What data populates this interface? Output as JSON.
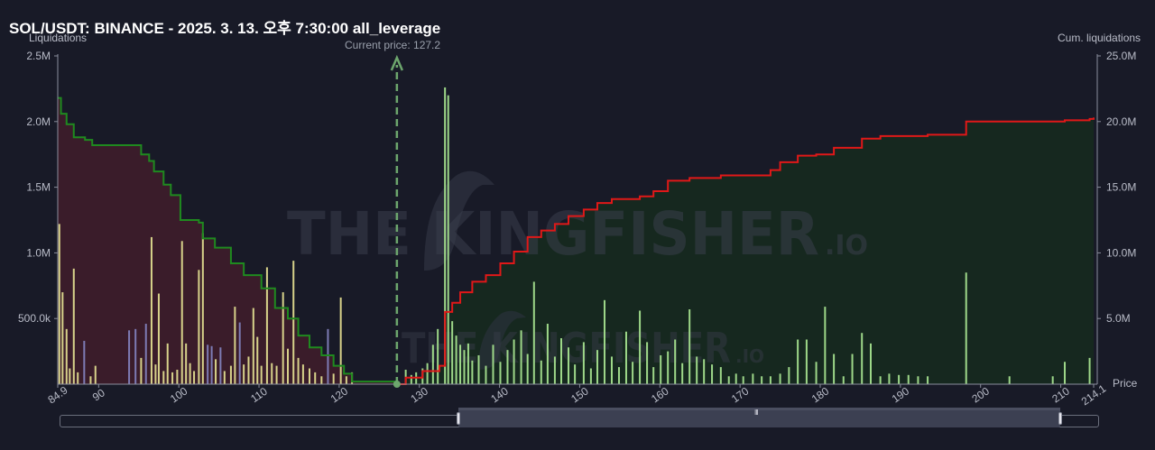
{
  "header": {
    "title": "SOL/USDT: BINANCE - 2025. 3. 13. 오후 7:30:00 all_leverage",
    "current_price_label": "Current price: 127.2"
  },
  "watermark": {
    "main": "THE KINGFISHER",
    "suffix": ".IO"
  },
  "colors": {
    "background": "#181a27",
    "long_fill": "#3a1c2a",
    "short_fill": "#16281f",
    "long_line": "#1f8a1f",
    "short_line": "#e01818",
    "bar_yellow": "#d7d28a",
    "bar_green": "#9ed889",
    "bar_purple": "#7d7bb4",
    "current_price": "#6da66d"
  },
  "scrollbar": {
    "grip_label": "III"
  },
  "chart_data": {
    "type": "bar",
    "title": "SOL/USDT: BINANCE - 2025. 3. 13. 오후 7:30:00 all_leverage",
    "xlabel": "Price",
    "ylabel_left": "Liquidations",
    "ylabel_right": "Cum. liquidations",
    "xlim": [
      84.9,
      214.1
    ],
    "ylim_left": [
      0,
      2500000
    ],
    "ylim_right": [
      0,
      25000000
    ],
    "x_ticks": [
      "84.9",
      "90",
      "100",
      "110",
      "120",
      "130",
      "140",
      "150",
      "160",
      "170",
      "180",
      "190",
      "200",
      "210",
      "214.1"
    ],
    "y_ticks_left": [
      "500.0k",
      "1.0M",
      "1.5M",
      "2.0M",
      "2.5M"
    ],
    "y_ticks_right": [
      "5.0M",
      "10.0M",
      "15.0M",
      "20.0M",
      "25.0M"
    ],
    "current_price": 127.2,
    "grid": false,
    "bars": [
      {
        "x": 85.1,
        "v": 1220000,
        "c": "y"
      },
      {
        "x": 85.5,
        "v": 700000,
        "c": "y"
      },
      {
        "x": 86.0,
        "v": 420000,
        "c": "y"
      },
      {
        "x": 86.4,
        "v": 120000,
        "c": "y"
      },
      {
        "x": 86.9,
        "v": 880000,
        "c": "y"
      },
      {
        "x": 87.4,
        "v": 90000,
        "c": "y"
      },
      {
        "x": 88.2,
        "v": 330000,
        "c": "p"
      },
      {
        "x": 89.0,
        "v": 60000,
        "c": "y"
      },
      {
        "x": 89.6,
        "v": 140000,
        "c": "y"
      },
      {
        "x": 93.8,
        "v": 410000,
        "c": "p"
      },
      {
        "x": 94.6,
        "v": 420000,
        "c": "p"
      },
      {
        "x": 95.3,
        "v": 200000,
        "c": "y"
      },
      {
        "x": 95.9,
        "v": 460000,
        "c": "p"
      },
      {
        "x": 96.6,
        "v": 1120000,
        "c": "y"
      },
      {
        "x": 97.1,
        "v": 150000,
        "c": "y"
      },
      {
        "x": 97.5,
        "v": 690000,
        "c": "y"
      },
      {
        "x": 98.1,
        "v": 100000,
        "c": "y"
      },
      {
        "x": 98.6,
        "v": 310000,
        "c": "y"
      },
      {
        "x": 99.2,
        "v": 90000,
        "c": "y"
      },
      {
        "x": 99.8,
        "v": 110000,
        "c": "y"
      },
      {
        "x": 100.4,
        "v": 1090000,
        "c": "y"
      },
      {
        "x": 100.9,
        "v": 310000,
        "c": "y"
      },
      {
        "x": 101.4,
        "v": 160000,
        "c": "y"
      },
      {
        "x": 101.9,
        "v": 100000,
        "c": "y"
      },
      {
        "x": 102.5,
        "v": 870000,
        "c": "y"
      },
      {
        "x": 103.0,
        "v": 1150000,
        "c": "y"
      },
      {
        "x": 103.6,
        "v": 300000,
        "c": "p"
      },
      {
        "x": 104.1,
        "v": 290000,
        "c": "p"
      },
      {
        "x": 104.6,
        "v": 190000,
        "c": "y"
      },
      {
        "x": 105.2,
        "v": 280000,
        "c": "p"
      },
      {
        "x": 105.7,
        "v": 100000,
        "c": "y"
      },
      {
        "x": 106.5,
        "v": 140000,
        "c": "y"
      },
      {
        "x": 107.0,
        "v": 590000,
        "c": "y"
      },
      {
        "x": 107.6,
        "v": 470000,
        "c": "p"
      },
      {
        "x": 108.1,
        "v": 150000,
        "c": "y"
      },
      {
        "x": 108.7,
        "v": 210000,
        "c": "y"
      },
      {
        "x": 109.3,
        "v": 580000,
        "c": "y"
      },
      {
        "x": 109.8,
        "v": 360000,
        "c": "y"
      },
      {
        "x": 110.3,
        "v": 140000,
        "c": "y"
      },
      {
        "x": 111.0,
        "v": 890000,
        "c": "y"
      },
      {
        "x": 111.6,
        "v": 160000,
        "c": "y"
      },
      {
        "x": 112.2,
        "v": 140000,
        "c": "y"
      },
      {
        "x": 113.0,
        "v": 700000,
        "c": "y"
      },
      {
        "x": 113.6,
        "v": 270000,
        "c": "y"
      },
      {
        "x": 114.3,
        "v": 940000,
        "c": "y"
      },
      {
        "x": 114.9,
        "v": 200000,
        "c": "y"
      },
      {
        "x": 115.5,
        "v": 150000,
        "c": "y"
      },
      {
        "x": 116.3,
        "v": 120000,
        "c": "y"
      },
      {
        "x": 117.0,
        "v": 90000,
        "c": "y"
      },
      {
        "x": 117.8,
        "v": 60000,
        "c": "y"
      },
      {
        "x": 118.6,
        "v": 420000,
        "c": "p"
      },
      {
        "x": 119.3,
        "v": 80000,
        "c": "y"
      },
      {
        "x": 120.2,
        "v": 660000,
        "c": "y"
      },
      {
        "x": 120.9,
        "v": 60000,
        "c": "y"
      },
      {
        "x": 121.6,
        "v": 90000,
        "c": "y"
      },
      {
        "x": 128.3,
        "v": 110000,
        "c": "g"
      },
      {
        "x": 129.0,
        "v": 70000,
        "c": "g"
      },
      {
        "x": 129.6,
        "v": 90000,
        "c": "g"
      },
      {
        "x": 130.4,
        "v": 120000,
        "c": "g"
      },
      {
        "x": 131.0,
        "v": 160000,
        "c": "g"
      },
      {
        "x": 131.7,
        "v": 300000,
        "c": "g"
      },
      {
        "x": 132.3,
        "v": 420000,
        "c": "g"
      },
      {
        "x": 133.2,
        "v": 2260000,
        "c": "g"
      },
      {
        "x": 133.6,
        "v": 2200000,
        "c": "g"
      },
      {
        "x": 134.1,
        "v": 480000,
        "c": "g"
      },
      {
        "x": 134.6,
        "v": 370000,
        "c": "g"
      },
      {
        "x": 135.1,
        "v": 300000,
        "c": "g"
      },
      {
        "x": 135.6,
        "v": 260000,
        "c": "g"
      },
      {
        "x": 136.1,
        "v": 310000,
        "c": "g"
      },
      {
        "x": 136.6,
        "v": 180000,
        "c": "g"
      },
      {
        "x": 137.4,
        "v": 220000,
        "c": "g"
      },
      {
        "x": 138.3,
        "v": 140000,
        "c": "g"
      },
      {
        "x": 139.2,
        "v": 300000,
        "c": "g"
      },
      {
        "x": 140.1,
        "v": 170000,
        "c": "g"
      },
      {
        "x": 141.0,
        "v": 260000,
        "c": "g"
      },
      {
        "x": 141.8,
        "v": 340000,
        "c": "g"
      },
      {
        "x": 142.7,
        "v": 410000,
        "c": "g"
      },
      {
        "x": 143.5,
        "v": 230000,
        "c": "g"
      },
      {
        "x": 144.3,
        "v": 780000,
        "c": "g"
      },
      {
        "x": 145.2,
        "v": 180000,
        "c": "g"
      },
      {
        "x": 146.0,
        "v": 460000,
        "c": "g"
      },
      {
        "x": 146.9,
        "v": 210000,
        "c": "g"
      },
      {
        "x": 147.7,
        "v": 350000,
        "c": "g"
      },
      {
        "x": 148.6,
        "v": 280000,
        "c": "g"
      },
      {
        "x": 149.4,
        "v": 150000,
        "c": "g"
      },
      {
        "x": 150.5,
        "v": 320000,
        "c": "g"
      },
      {
        "x": 151.4,
        "v": 120000,
        "c": "g"
      },
      {
        "x": 152.2,
        "v": 260000,
        "c": "g"
      },
      {
        "x": 153.1,
        "v": 640000,
        "c": "g"
      },
      {
        "x": 154.0,
        "v": 210000,
        "c": "g"
      },
      {
        "x": 154.9,
        "v": 130000,
        "c": "g"
      },
      {
        "x": 155.8,
        "v": 400000,
        "c": "g"
      },
      {
        "x": 156.6,
        "v": 170000,
        "c": "g"
      },
      {
        "x": 157.5,
        "v": 560000,
        "c": "g"
      },
      {
        "x": 158.4,
        "v": 320000,
        "c": "g"
      },
      {
        "x": 159.2,
        "v": 130000,
        "c": "g"
      },
      {
        "x": 160.1,
        "v": 220000,
        "c": "g"
      },
      {
        "x": 161.0,
        "v": 250000,
        "c": "g"
      },
      {
        "x": 161.9,
        "v": 340000,
        "c": "g"
      },
      {
        "x": 162.8,
        "v": 160000,
        "c": "g"
      },
      {
        "x": 163.7,
        "v": 570000,
        "c": "g"
      },
      {
        "x": 164.6,
        "v": 210000,
        "c": "g"
      },
      {
        "x": 165.5,
        "v": 190000,
        "c": "g"
      },
      {
        "x": 166.5,
        "v": 150000,
        "c": "g"
      },
      {
        "x": 167.6,
        "v": 130000,
        "c": "g"
      },
      {
        "x": 168.6,
        "v": 60000,
        "c": "g"
      },
      {
        "x": 169.5,
        "v": 80000,
        "c": "g"
      },
      {
        "x": 170.4,
        "v": 60000,
        "c": "g"
      },
      {
        "x": 171.6,
        "v": 80000,
        "c": "g"
      },
      {
        "x": 172.7,
        "v": 60000,
        "c": "g"
      },
      {
        "x": 173.8,
        "v": 60000,
        "c": "g"
      },
      {
        "x": 175.0,
        "v": 80000,
        "c": "g"
      },
      {
        "x": 176.1,
        "v": 130000,
        "c": "g"
      },
      {
        "x": 177.2,
        "v": 340000,
        "c": "g"
      },
      {
        "x": 178.3,
        "v": 340000,
        "c": "g"
      },
      {
        "x": 179.5,
        "v": 170000,
        "c": "g"
      },
      {
        "x": 180.6,
        "v": 590000,
        "c": "g"
      },
      {
        "x": 181.7,
        "v": 230000,
        "c": "g"
      },
      {
        "x": 182.9,
        "v": 60000,
        "c": "g"
      },
      {
        "x": 184.0,
        "v": 230000,
        "c": "g"
      },
      {
        "x": 185.2,
        "v": 390000,
        "c": "g"
      },
      {
        "x": 186.3,
        "v": 310000,
        "c": "g"
      },
      {
        "x": 187.5,
        "v": 60000,
        "c": "g"
      },
      {
        "x": 188.6,
        "v": 80000,
        "c": "g"
      },
      {
        "x": 189.8,
        "v": 70000,
        "c": "g"
      },
      {
        "x": 191.0,
        "v": 70000,
        "c": "g"
      },
      {
        "x": 192.2,
        "v": 60000,
        "c": "g"
      },
      {
        "x": 193.4,
        "v": 60000,
        "c": "g"
      },
      {
        "x": 198.2,
        "v": 850000,
        "c": "g"
      },
      {
        "x": 203.6,
        "v": 60000,
        "c": "g"
      },
      {
        "x": 209.0,
        "v": 60000,
        "c": "g"
      },
      {
        "x": 210.5,
        "v": 170000,
        "c": "g"
      },
      {
        "x": 213.6,
        "v": 200000,
        "c": "g"
      }
    ],
    "cum_long": [
      [
        84.9,
        21800000
      ],
      [
        85.3,
        20600000
      ],
      [
        86.0,
        19800000
      ],
      [
        86.9,
        18800000
      ],
      [
        88.3,
        18600000
      ],
      [
        89.2,
        18200000
      ],
      [
        94.6,
        18200000
      ],
      [
        95.3,
        17500000
      ],
      [
        96.3,
        17000000
      ],
      [
        96.9,
        16200000
      ],
      [
        98.1,
        15200000
      ],
      [
        99.0,
        14400000
      ],
      [
        100.2,
        12500000
      ],
      [
        102.5,
        12300000
      ],
      [
        103.0,
        11100000
      ],
      [
        104.5,
        10400000
      ],
      [
        106.5,
        9200000
      ],
      [
        108.1,
        8300000
      ],
      [
        110.3,
        7300000
      ],
      [
        112.0,
        5800000
      ],
      [
        113.6,
        5000000
      ],
      [
        114.9,
        3700000
      ],
      [
        116.3,
        2800000
      ],
      [
        117.8,
        2200000
      ],
      [
        119.3,
        1400000
      ],
      [
        120.6,
        800000
      ],
      [
        121.6,
        200000
      ],
      [
        127.2,
        0
      ]
    ],
    "cum_short": [
      [
        127.2,
        0
      ],
      [
        128.3,
        500000
      ],
      [
        130.4,
        1000000
      ],
      [
        132.5,
        1400000
      ],
      [
        133.2,
        5500000
      ],
      [
        134.1,
        6200000
      ],
      [
        135.1,
        7000000
      ],
      [
        136.6,
        7800000
      ],
      [
        138.3,
        8300000
      ],
      [
        140.1,
        9200000
      ],
      [
        141.8,
        10100000
      ],
      [
        143.5,
        11200000
      ],
      [
        145.2,
        11700000
      ],
      [
        146.9,
        12200000
      ],
      [
        148.6,
        12800000
      ],
      [
        150.5,
        13300000
      ],
      [
        152.2,
        13800000
      ],
      [
        154.0,
        14100000
      ],
      [
        157.5,
        14300000
      ],
      [
        159.2,
        14700000
      ],
      [
        161.0,
        15500000
      ],
      [
        163.7,
        15700000
      ],
      [
        167.6,
        15900000
      ],
      [
        173.8,
        16300000
      ],
      [
        175.0,
        16900000
      ],
      [
        177.2,
        17400000
      ],
      [
        179.5,
        17500000
      ],
      [
        181.7,
        18000000
      ],
      [
        185.2,
        18700000
      ],
      [
        187.5,
        18900000
      ],
      [
        193.4,
        19000000
      ],
      [
        198.2,
        20000000
      ],
      [
        203.6,
        20000000
      ],
      [
        210.5,
        20100000
      ],
      [
        213.6,
        20200000
      ],
      [
        214.1,
        20300000
      ]
    ]
  }
}
